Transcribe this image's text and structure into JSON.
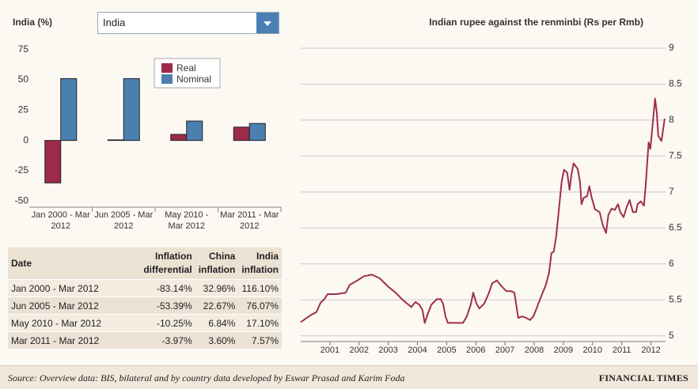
{
  "controls": {
    "dropdown": "India"
  },
  "chart_data": [
    {
      "type": "bar",
      "title": "India (%)",
      "categories": [
        "Jan 2000 - Mar 2012",
        "Jun 2005 - Mar 2012",
        "May 2010 - Mar 2012",
        "Mar 2011 - Mar 2012"
      ],
      "series": [
        {
          "name": "Real",
          "color": "#9c2b4b",
          "values": [
            -35,
            0.5,
            5,
            11
          ]
        },
        {
          "name": "Nominal",
          "color": "#4b7fb0",
          "values": [
            51,
            51,
            16,
            14
          ]
        }
      ],
      "ylim": [
        -55,
        78
      ],
      "yticks": [
        75,
        50,
        25,
        0,
        -25,
        -50
      ],
      "grid": false
    },
    {
      "type": "line",
      "title": "Indian rupee against the renminbi (Rs per Rmb)",
      "color": "#9e2f4c",
      "x": [
        2000.0,
        2000.35,
        2000.54,
        2000.68,
        2000.81,
        2000.92,
        2001.22,
        2001.54,
        2001.68,
        2001.9,
        2002.17,
        2002.44,
        2002.71,
        2002.98,
        2003.25,
        2003.52,
        2003.79,
        2003.93,
        2004.07,
        2004.17,
        2004.25,
        2004.34,
        2004.47,
        2004.66,
        2004.8,
        2004.88,
        2004.96,
        2005.04,
        2005.28,
        2005.56,
        2005.69,
        2005.83,
        2005.91,
        2006.02,
        2006.12,
        2006.29,
        2006.45,
        2006.56,
        2006.72,
        2006.88,
        2007.05,
        2007.21,
        2007.32,
        2007.37,
        2007.45,
        2007.59,
        2007.72,
        2007.86,
        2007.97,
        2008.08,
        2008.18,
        2008.29,
        2008.4,
        2008.51,
        2008.59,
        2008.67,
        2008.75,
        2008.83,
        2008.94,
        2009.02,
        2009.13,
        2009.21,
        2009.27,
        2009.35,
        2009.49,
        2009.57,
        2009.62,
        2009.7,
        2009.81,
        2009.89,
        2009.97,
        2010.08,
        2010.24,
        2010.35,
        2010.46,
        2010.54,
        2010.65,
        2010.76,
        2010.87,
        2010.95,
        2011.06,
        2011.17,
        2011.27,
        2011.38,
        2011.49,
        2011.54,
        2011.65,
        2011.76,
        2011.82,
        2011.92,
        2011.98,
        2012.09,
        2012.14,
        2012.2,
        2012.25,
        2012.36,
        2012.47
      ],
      "values": [
        5.19,
        5.29,
        5.33,
        5.46,
        5.51,
        5.58,
        5.58,
        5.6,
        5.71,
        5.76,
        5.83,
        5.85,
        5.8,
        5.69,
        5.6,
        5.49,
        5.4,
        5.47,
        5.43,
        5.36,
        5.18,
        5.29,
        5.43,
        5.51,
        5.51,
        5.44,
        5.27,
        5.18,
        5.18,
        5.18,
        5.27,
        5.44,
        5.6,
        5.45,
        5.38,
        5.45,
        5.6,
        5.73,
        5.77,
        5.69,
        5.62,
        5.62,
        5.6,
        5.47,
        5.25,
        5.27,
        5.25,
        5.22,
        5.27,
        5.38,
        5.49,
        5.6,
        5.71,
        5.88,
        6.15,
        6.17,
        6.37,
        6.7,
        7.14,
        7.31,
        7.27,
        7.03,
        7.23,
        7.4,
        7.32,
        7.14,
        6.83,
        6.92,
        6.94,
        7.08,
        6.92,
        6.76,
        6.72,
        6.54,
        6.43,
        6.68,
        6.77,
        6.75,
        6.83,
        6.72,
        6.65,
        6.79,
        6.89,
        6.72,
        6.72,
        6.83,
        6.87,
        6.81,
        7.09,
        7.69,
        7.6,
        8.08,
        8.3,
        8.11,
        7.78,
        7.71,
        8.02
      ],
      "xlim": [
        2000,
        2012.5
      ],
      "xticks": [
        2001,
        2002,
        2003,
        2004,
        2005,
        2006,
        2007,
        2008,
        2009,
        2010,
        2011,
        2012
      ],
      "ylim": [
        4.92,
        9
      ],
      "yticks": [
        5,
        5.5,
        6,
        6.5,
        7,
        7.5,
        8,
        8.5,
        9
      ],
      "grid": true
    }
  ],
  "table": {
    "headers": [
      "Date",
      "Inflation differential",
      "China inflation",
      "India inflation"
    ],
    "rows": [
      [
        "Jan 2000 - Mar 2012",
        "-83.14%",
        "32.96%",
        "116.10%"
      ],
      [
        "Jun 2005 - Mar 2012",
        "-53.39%",
        "22.67%",
        "76.07%"
      ],
      [
        "May 2010 - Mar 2012",
        "-10.25%",
        "6.84%",
        "17.10%"
      ],
      [
        "Mar 2011 - Mar 2012",
        "-3.97%",
        "3.60%",
        "7.57%"
      ]
    ]
  },
  "footer": {
    "source": "Source: Overview data: BIS, bilateral and by country data developed by Eswar Prasad and Karim Foda",
    "brand": "FINANCIAL TIMES"
  }
}
